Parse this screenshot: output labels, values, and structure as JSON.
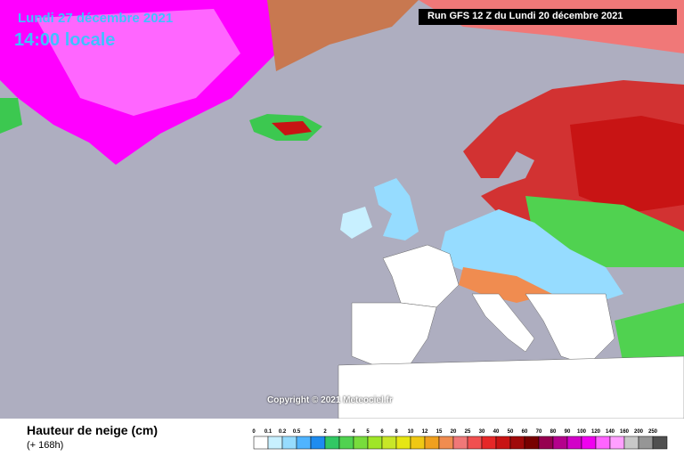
{
  "header": {
    "date": "Lundi 27 décembre 2021",
    "time": "14:00 locale",
    "run": "Run GFS 12 Z du Lundi 20 décembre 2021"
  },
  "map": {
    "copyright": "Copyright © 2021 Meteociel.fr"
  },
  "legend": {
    "title": "Hauteur de neige (cm)",
    "subtitle": "(+ 168h)",
    "stops": [
      {
        "label": "0",
        "color": "#ffffff"
      },
      {
        "label": "0.1",
        "color": "#c8f0ff"
      },
      {
        "label": "0.2",
        "color": "#96dcff"
      },
      {
        "label": "0.5",
        "color": "#50b4ff"
      },
      {
        "label": "1",
        "color": "#1e8cf0"
      },
      {
        "label": "2",
        "color": "#32c864"
      },
      {
        "label": "3",
        "color": "#50d250"
      },
      {
        "label": "4",
        "color": "#78dc3c"
      },
      {
        "label": "5",
        "color": "#a0e628"
      },
      {
        "label": "6",
        "color": "#c8e628"
      },
      {
        "label": "8",
        "color": "#e6e614"
      },
      {
        "label": "10",
        "color": "#f0c814"
      },
      {
        "label": "12",
        "color": "#f0a01e"
      },
      {
        "label": "15",
        "color": "#f08c50"
      },
      {
        "label": "20",
        "color": "#f07878"
      },
      {
        "label": "25",
        "color": "#f05050"
      },
      {
        "label": "30",
        "color": "#e62828"
      },
      {
        "label": "40",
        "color": "#c81414"
      },
      {
        "label": "50",
        "color": "#a00a0a"
      },
      {
        "label": "60",
        "color": "#780000"
      },
      {
        "label": "70",
        "color": "#960050"
      },
      {
        "label": "80",
        "color": "#b4008c"
      },
      {
        "label": "90",
        "color": "#d200c8"
      },
      {
        "label": "100",
        "color": "#f000f0"
      },
      {
        "label": "120",
        "color": "#ff64ff"
      },
      {
        "label": "140",
        "color": "#ffa0ff"
      },
      {
        "label": "160",
        "color": "#c8c8c8"
      },
      {
        "label": "200",
        "color": "#969696"
      },
      {
        "label": "250",
        "color": "#505050"
      }
    ]
  }
}
